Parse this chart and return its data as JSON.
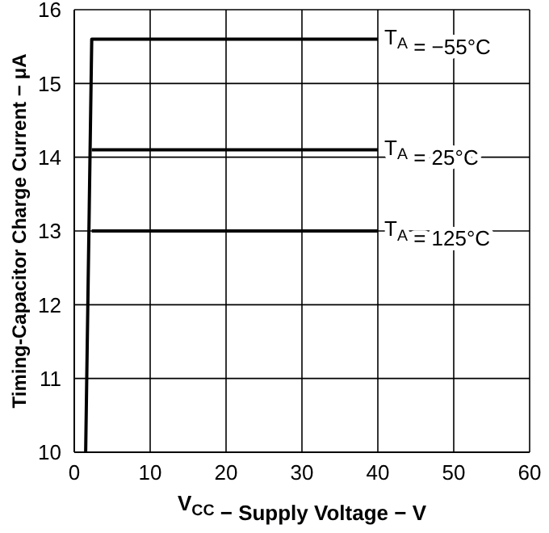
{
  "chart_data": {
    "type": "line",
    "xlabel": "V$_{CC}$ − Supply Voltage − V",
    "ylabel": "Timing-Capacitor Charge Current − μA",
    "series": [
      {
        "name": "T$_{A}$ = −55°C",
        "color": "#000000",
        "x": [
          1.5,
          2.3,
          40
        ],
        "values": [
          10,
          15.6,
          15.6
        ]
      },
      {
        "name": "T$_{A}$ = 25°C",
        "color": "#000000",
        "x": [
          2.3,
          40
        ],
        "values": [
          14.1,
          14.1
        ]
      },
      {
        "name": "T$_{A}$ = 125°C",
        "color": "#000000",
        "x": [
          2.3,
          40
        ],
        "values": [
          13.0,
          13.0
        ]
      }
    ],
    "xlim": [
      0,
      60
    ],
    "xticks": [
      0,
      10,
      20,
      30,
      40,
      50,
      60
    ],
    "ylim": [
      10,
      16
    ],
    "yticks": [
      10,
      11,
      12,
      13,
      14,
      15,
      16
    ],
    "grid": true,
    "marker": "none",
    "line_style": "solid"
  }
}
